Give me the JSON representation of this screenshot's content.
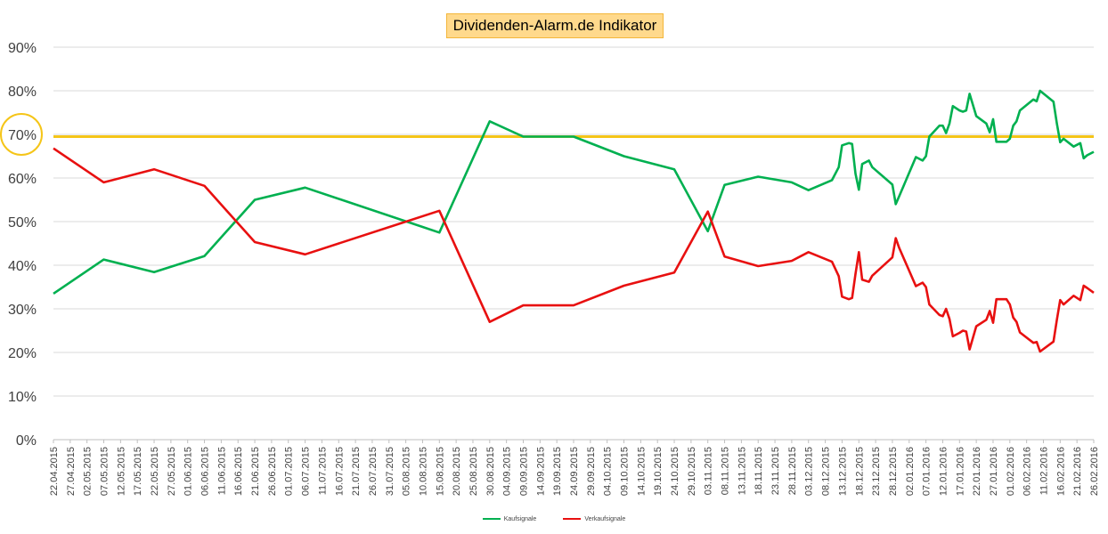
{
  "chart_data": {
    "type": "line",
    "title": "Dividenden-Alarm.de Indikator",
    "ylim": [
      0,
      0.9
    ],
    "yticks": [
      0,
      0.1,
      0.2,
      0.3,
      0.4,
      0.5,
      0.6,
      0.7,
      0.8,
      0.9
    ],
    "ytick_labels": [
      "0%",
      "10%",
      "20%",
      "30%",
      "40%",
      "50%",
      "60%",
      "70%",
      "80%",
      "90%"
    ],
    "x_start": "2015-04-22",
    "x_end": "2016-02-26",
    "xtick_labels": [
      "22.04.2015",
      "27.04.2015",
      "02.05.2015",
      "07.05.2015",
      "12.05.2015",
      "17.05.2015",
      "22.05.2015",
      "27.05.2015",
      "01.06.2015",
      "06.06.2015",
      "11.06.2015",
      "16.06.2015",
      "21.06.2015",
      "26.06.2015",
      "01.07.2015",
      "06.07.2015",
      "11.07.2015",
      "16.07.2015",
      "21.07.2015",
      "26.07.2015",
      "31.07.2015",
      "05.08.2015",
      "10.08.2015",
      "15.08.2015",
      "20.08.2015",
      "25.08.2015",
      "30.08.2015",
      "04.09.2015",
      "09.09.2015",
      "14.09.2015",
      "19.09.2015",
      "24.09.2015",
      "29.09.2015",
      "04.10.2015",
      "09.10.2015",
      "14.10.2015",
      "19.10.2015",
      "24.10.2015",
      "29.10.2015",
      "03.11.2015",
      "08.11.2015",
      "13.11.2015",
      "18.11.2015",
      "23.11.2015",
      "28.11.2015",
      "03.12.2015",
      "08.12.2015",
      "13.12.2015",
      "18.12.2015",
      "23.12.2015",
      "28.12.2015",
      "02.01.2016",
      "07.01.2016",
      "12.01.2016",
      "17.01.2016",
      "22.01.2016",
      "27.01.2016",
      "01.02.2016",
      "06.02.2016",
      "11.02.2016",
      "16.02.2016",
      "21.02.2016",
      "26.02.2016"
    ],
    "grid": true,
    "legend_position": "bottom",
    "threshold": {
      "value": 0.695,
      "color": "#f5c518"
    },
    "highlight_marker": {
      "value": 0.7,
      "color": "#f5c518"
    },
    "series": [
      {
        "name": "Kaufsignale",
        "color": "#00b050",
        "points": [
          [
            "2015-04-22",
            0.335
          ],
          [
            "2015-05-07",
            0.413
          ],
          [
            "2015-05-22",
            0.384
          ],
          [
            "2015-06-06",
            0.421
          ],
          [
            "2015-06-21",
            0.55
          ],
          [
            "2015-07-06",
            0.578
          ],
          [
            "2015-08-15",
            0.475
          ],
          [
            "2015-08-30",
            0.73
          ],
          [
            "2015-09-09",
            0.695
          ],
          [
            "2015-09-24",
            0.695
          ],
          [
            "2015-10-09",
            0.65
          ],
          [
            "2015-10-24",
            0.62
          ],
          [
            "2015-11-03",
            0.478
          ],
          [
            "2015-11-08",
            0.584
          ],
          [
            "2015-11-18",
            0.603
          ],
          [
            "2015-11-28",
            0.59
          ],
          [
            "2015-12-03",
            0.572
          ],
          [
            "2015-12-10",
            0.595
          ],
          [
            "2015-12-12",
            0.625
          ],
          [
            "2015-12-13",
            0.675
          ],
          [
            "2015-12-15",
            0.68
          ],
          [
            "2015-12-16",
            0.678
          ],
          [
            "2015-12-17",
            0.61
          ],
          [
            "2015-12-18",
            0.573
          ],
          [
            "2015-12-19",
            0.632
          ],
          [
            "2015-12-21",
            0.64
          ],
          [
            "2015-12-22",
            0.625
          ],
          [
            "2015-12-28",
            0.585
          ],
          [
            "2015-12-29",
            0.54
          ],
          [
            "2015-12-30",
            0.558
          ],
          [
            "2016-01-04",
            0.648
          ],
          [
            "2016-01-06",
            0.64
          ],
          [
            "2016-01-07",
            0.65
          ],
          [
            "2016-01-08",
            0.695
          ],
          [
            "2016-01-11",
            0.72
          ],
          [
            "2016-01-12",
            0.72
          ],
          [
            "2016-01-13",
            0.703
          ],
          [
            "2016-01-14",
            0.725
          ],
          [
            "2016-01-15",
            0.765
          ],
          [
            "2016-01-17",
            0.755
          ],
          [
            "2016-01-18",
            0.752
          ],
          [
            "2016-01-19",
            0.755
          ],
          [
            "2016-01-20",
            0.793
          ],
          [
            "2016-01-22",
            0.742
          ],
          [
            "2016-01-25",
            0.725
          ],
          [
            "2016-01-26",
            0.705
          ],
          [
            "2016-01-27",
            0.735
          ],
          [
            "2016-01-28",
            0.683
          ],
          [
            "2016-01-31",
            0.683
          ],
          [
            "2016-02-01",
            0.69
          ],
          [
            "2016-02-02",
            0.72
          ],
          [
            "2016-02-03",
            0.73
          ],
          [
            "2016-02-04",
            0.755
          ],
          [
            "2016-02-08",
            0.78
          ],
          [
            "2016-02-09",
            0.776
          ],
          [
            "2016-02-10",
            0.8
          ],
          [
            "2016-02-14",
            0.775
          ],
          [
            "2016-02-15",
            0.725
          ],
          [
            "2016-02-16",
            0.682
          ],
          [
            "2016-02-17",
            0.69
          ],
          [
            "2016-02-20",
            0.672
          ],
          [
            "2016-02-22",
            0.68
          ],
          [
            "2016-02-23",
            0.645
          ],
          [
            "2016-02-24",
            0.652
          ],
          [
            "2016-02-26",
            0.66
          ]
        ]
      },
      {
        "name": "Verkaufsignale",
        "color": "#e81010",
        "points": [
          [
            "2015-04-22",
            0.668
          ],
          [
            "2015-05-07",
            0.59
          ],
          [
            "2015-05-22",
            0.62
          ],
          [
            "2015-06-06",
            0.582
          ],
          [
            "2015-06-21",
            0.453
          ],
          [
            "2015-07-06",
            0.425
          ],
          [
            "2015-08-15",
            0.525
          ],
          [
            "2015-08-30",
            0.27
          ],
          [
            "2015-09-09",
            0.308
          ],
          [
            "2015-09-24",
            0.308
          ],
          [
            "2015-10-09",
            0.353
          ],
          [
            "2015-10-24",
            0.383
          ],
          [
            "2015-11-03",
            0.523
          ],
          [
            "2015-11-08",
            0.42
          ],
          [
            "2015-11-18",
            0.398
          ],
          [
            "2015-11-28",
            0.41
          ],
          [
            "2015-12-03",
            0.43
          ],
          [
            "2015-12-10",
            0.408
          ],
          [
            "2015-12-12",
            0.375
          ],
          [
            "2015-12-13",
            0.328
          ],
          [
            "2015-12-15",
            0.322
          ],
          [
            "2015-12-16",
            0.325
          ],
          [
            "2015-12-17",
            0.38
          ],
          [
            "2015-12-18",
            0.43
          ],
          [
            "2015-12-19",
            0.367
          ],
          [
            "2015-12-21",
            0.362
          ],
          [
            "2015-12-22",
            0.376
          ],
          [
            "2015-12-28",
            0.418
          ],
          [
            "2015-12-29",
            0.462
          ],
          [
            "2015-12-30",
            0.44
          ],
          [
            "2016-01-04",
            0.352
          ],
          [
            "2016-01-06",
            0.36
          ],
          [
            "2016-01-07",
            0.35
          ],
          [
            "2016-01-08",
            0.31
          ],
          [
            "2016-01-11",
            0.286
          ],
          [
            "2016-01-12",
            0.283
          ],
          [
            "2016-01-13",
            0.3
          ],
          [
            "2016-01-14",
            0.277
          ],
          [
            "2016-01-15",
            0.237
          ],
          [
            "2016-01-17",
            0.245
          ],
          [
            "2016-01-18",
            0.25
          ],
          [
            "2016-01-19",
            0.248
          ],
          [
            "2016-01-20",
            0.207
          ],
          [
            "2016-01-22",
            0.26
          ],
          [
            "2016-01-25",
            0.275
          ],
          [
            "2016-01-26",
            0.295
          ],
          [
            "2016-01-27",
            0.268
          ],
          [
            "2016-01-28",
            0.322
          ],
          [
            "2016-01-31",
            0.322
          ],
          [
            "2016-02-01",
            0.31
          ],
          [
            "2016-02-02",
            0.28
          ],
          [
            "2016-02-03",
            0.27
          ],
          [
            "2016-02-04",
            0.246
          ],
          [
            "2016-02-08",
            0.222
          ],
          [
            "2016-02-09",
            0.224
          ],
          [
            "2016-02-10",
            0.202
          ],
          [
            "2016-02-14",
            0.225
          ],
          [
            "2016-02-15",
            0.275
          ],
          [
            "2016-02-16",
            0.32
          ],
          [
            "2016-02-17",
            0.31
          ],
          [
            "2016-02-20",
            0.33
          ],
          [
            "2016-02-22",
            0.32
          ],
          [
            "2016-02-23",
            0.353
          ],
          [
            "2016-02-24",
            0.348
          ],
          [
            "2016-02-26",
            0.337
          ]
        ]
      }
    ]
  }
}
